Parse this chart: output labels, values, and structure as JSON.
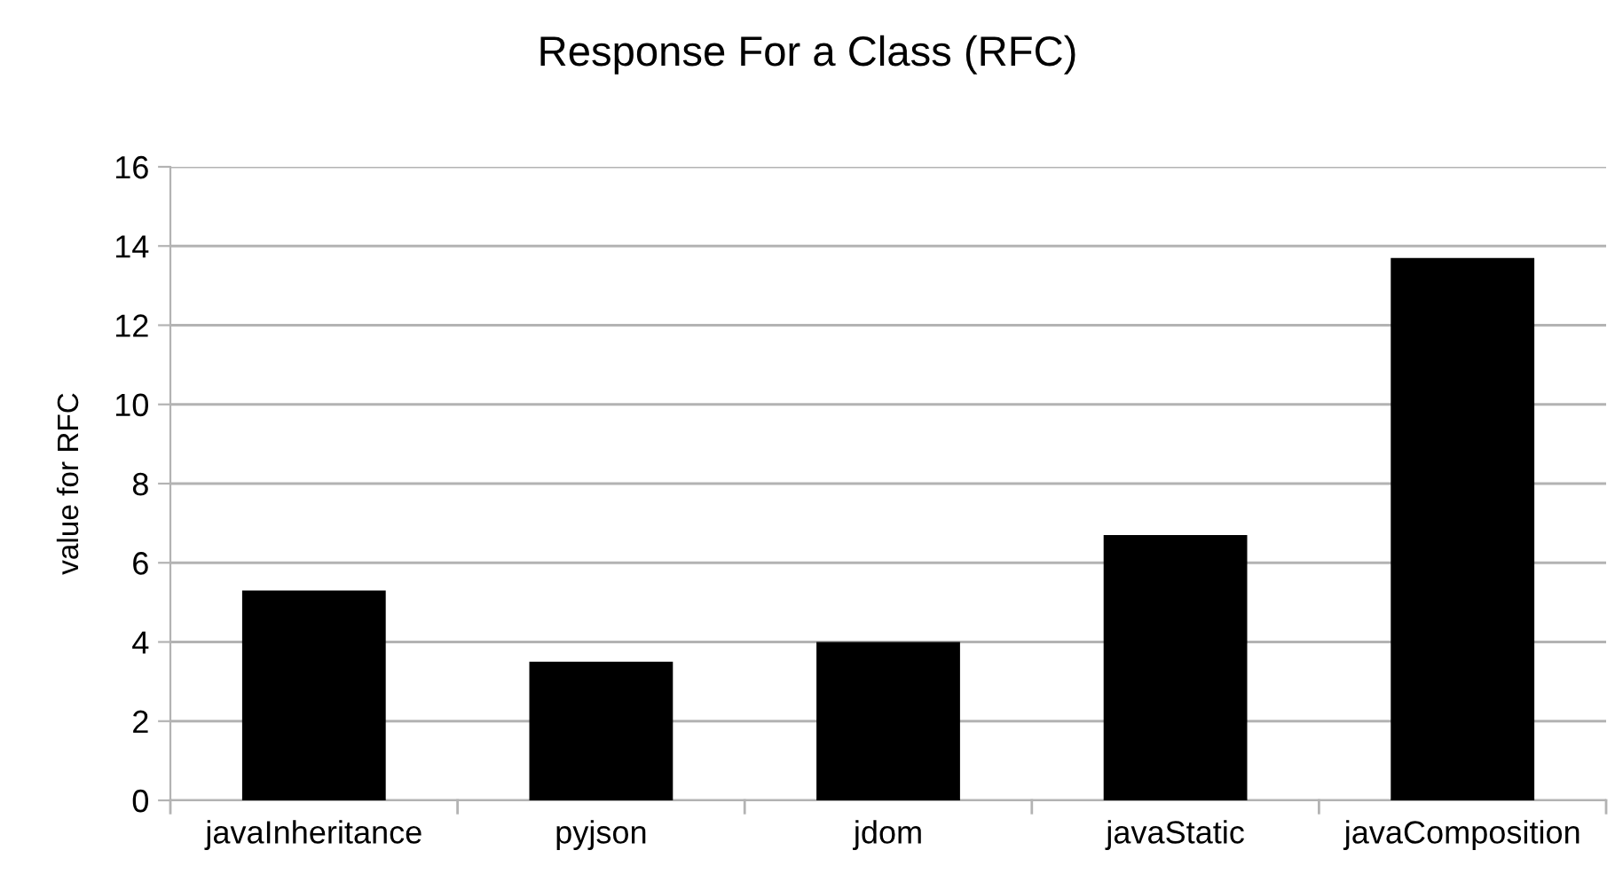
{
  "chart_data": {
    "type": "bar",
    "title": "Response For a Class (RFC)",
    "ylabel": "value for RFC",
    "categories": [
      "javaInheritance",
      "pyjson",
      "jdom",
      "javaStatic",
      "javaComposition"
    ],
    "values": [
      5.3,
      3.5,
      4.0,
      6.7,
      13.7
    ],
    "color": "#000000",
    "ylim": [
      0,
      16
    ],
    "yticks": [
      0,
      2,
      4,
      6,
      8,
      10,
      12,
      14,
      16
    ],
    "grid": "y"
  }
}
